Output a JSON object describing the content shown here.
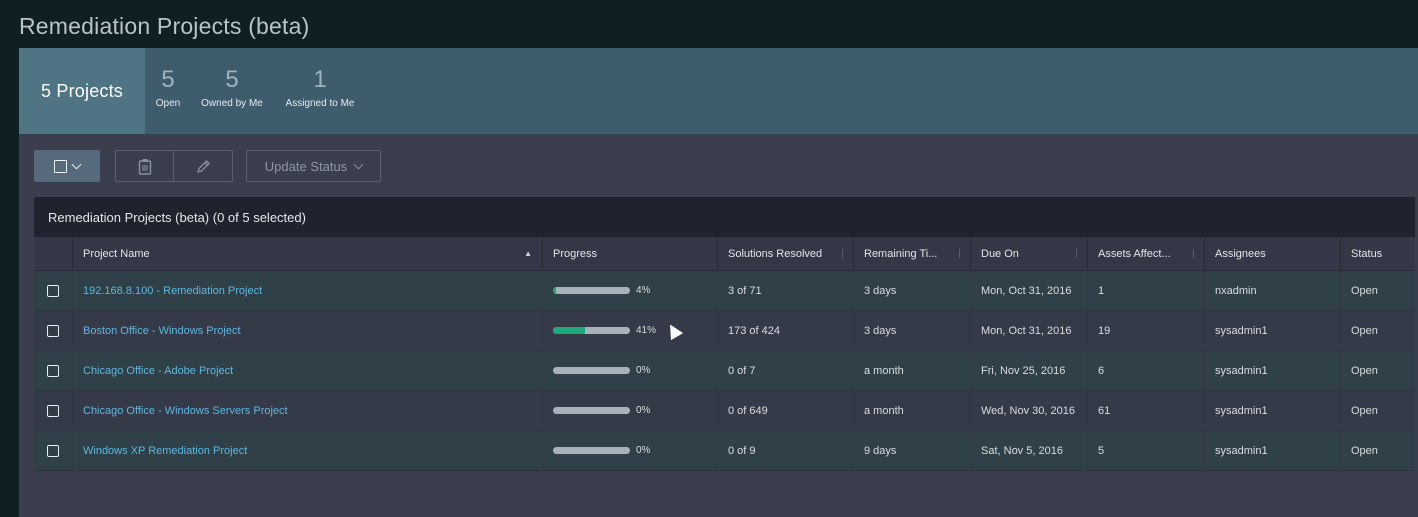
{
  "page": {
    "title": "Remediation Projects (beta)"
  },
  "summary": {
    "main_label": "5 Projects",
    "stats": [
      {
        "value": "5",
        "label": "Open"
      },
      {
        "value": "5",
        "label": "Owned by Me"
      },
      {
        "value": "1",
        "label": "Assigned to Me"
      }
    ]
  },
  "toolbar": {
    "select_icon": "checkbox-dropdown-icon",
    "delete_icon": "clipboard-trash-icon",
    "edit_icon": "pencil-icon",
    "update_status_label": "Update Status"
  },
  "table": {
    "title": "Remediation Projects (beta) (0 of 5 selected)",
    "columns": [
      "Project Name",
      "Progress",
      "Solutions Resolved",
      "Remaining Ti...",
      "Due On",
      "Assets Affect...",
      "Assignees",
      "Status"
    ],
    "rows": [
      {
        "name": "192.168.8.100 - Remediation Project",
        "progress": 4,
        "progress_text": "4%",
        "solutions": "3 of 71",
        "remaining": "3 days",
        "due": "Mon, Oct 31, 2016",
        "assets": "1",
        "assignees": "nxadmin",
        "status": "Open"
      },
      {
        "name": "Boston Office - Windows Project",
        "progress": 41,
        "progress_text": "41%",
        "solutions": "173 of 424",
        "remaining": "3 days",
        "due": "Mon, Oct 31, 2016",
        "assets": "19",
        "assignees": "sysadmin1",
        "status": "Open"
      },
      {
        "name": "Chicago Office - Adobe Project",
        "progress": 0,
        "progress_text": "0%",
        "solutions": "0 of 7",
        "remaining": "a month",
        "due": "Fri, Nov 25, 2016",
        "assets": "6",
        "assignees": "sysadmin1",
        "status": "Open"
      },
      {
        "name": "Chicago Office - Windows Servers Project",
        "progress": 0,
        "progress_text": "0%",
        "solutions": "0 of 649",
        "remaining": "a month",
        "due": "Wed, Nov 30, 2016",
        "assets": "61",
        "assignees": "sysadmin1",
        "status": "Open"
      },
      {
        "name": "Windows XP Remediation Project",
        "progress": 0,
        "progress_text": "0%",
        "solutions": "0 of 9",
        "remaining": "9 days",
        "due": "Sat, Nov 5, 2016",
        "assets": "5",
        "assignees": "sysadmin1",
        "status": "Open"
      }
    ]
  },
  "colors": {
    "progress_fill": "#1ea87a",
    "link": "#5fb7df",
    "summary_active": "#4f7585"
  }
}
